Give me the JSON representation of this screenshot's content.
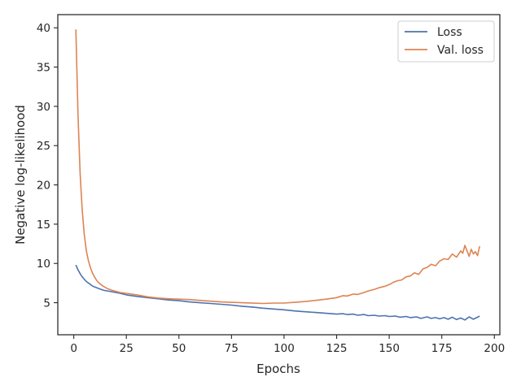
{
  "chart_data": {
    "type": "line",
    "title": "",
    "xlabel": "Epochs",
    "ylabel": "Negative log-likelihood",
    "xlim": [
      -7.6,
      202.6
    ],
    "ylim": [
      0.92,
      41.68
    ],
    "xticks": [
      0,
      25,
      50,
      75,
      100,
      125,
      150,
      175,
      200
    ],
    "yticks": [
      5,
      10,
      15,
      20,
      25,
      30,
      35,
      40
    ],
    "grid": false,
    "legend_position": "top-right",
    "series": [
      {
        "name": "Loss",
        "color": "#4c72b0",
        "x": [
          1,
          2,
          3,
          4,
          5,
          6,
          7,
          8,
          9,
          10,
          12,
          14,
          16,
          18,
          20,
          22,
          25,
          30,
          35,
          40,
          45,
          50,
          55,
          60,
          65,
          70,
          75,
          80,
          85,
          90,
          95,
          100,
          105,
          110,
          115,
          120,
          125,
          128,
          130,
          133,
          135,
          138,
          140,
          143,
          145,
          148,
          150,
          153,
          155,
          158,
          160,
          163,
          165,
          168,
          170,
          172,
          174,
          176,
          178,
          180,
          182,
          184,
          186,
          188,
          190,
          192,
          193
        ],
        "y": [
          9.8,
          9.2,
          8.7,
          8.3,
          8.0,
          7.7,
          7.5,
          7.3,
          7.1,
          7.0,
          6.8,
          6.6,
          6.5,
          6.4,
          6.3,
          6.2,
          6.0,
          5.8,
          5.65,
          5.5,
          5.35,
          5.25,
          5.1,
          5.0,
          4.9,
          4.8,
          4.7,
          4.55,
          4.45,
          4.3,
          4.2,
          4.1,
          3.95,
          3.85,
          3.75,
          3.65,
          3.55,
          3.6,
          3.5,
          3.55,
          3.4,
          3.5,
          3.35,
          3.4,
          3.3,
          3.35,
          3.25,
          3.3,
          3.15,
          3.25,
          3.1,
          3.2,
          3.0,
          3.2,
          3.0,
          3.1,
          2.95,
          3.1,
          2.9,
          3.15,
          2.85,
          3.05,
          2.8,
          3.2,
          2.9,
          3.15,
          3.3
        ]
      },
      {
        "name": "Val. loss",
        "color": "#dd8452",
        "x": [
          1,
          2,
          3,
          4,
          5,
          6,
          7,
          8,
          9,
          10,
          11,
          12,
          14,
          16,
          18,
          20,
          22,
          25,
          30,
          35,
          40,
          45,
          50,
          55,
          60,
          70,
          80,
          90,
          95,
          100,
          105,
          110,
          115,
          120,
          125,
          128,
          130,
          133,
          135,
          138,
          140,
          143,
          145,
          148,
          150,
          152,
          154,
          156,
          158,
          160,
          162,
          164,
          166,
          168,
          170,
          172,
          174,
          176,
          178,
          180,
          182,
          184,
          185,
          186,
          187,
          188,
          189,
          190,
          191,
          192,
          193
        ],
        "y": [
          39.8,
          29.0,
          21.5,
          16.8,
          13.7,
          11.6,
          10.3,
          9.4,
          8.7,
          8.2,
          7.8,
          7.5,
          7.1,
          6.8,
          6.6,
          6.45,
          6.3,
          6.2,
          6.0,
          5.75,
          5.6,
          5.5,
          5.45,
          5.4,
          5.3,
          5.1,
          5.0,
          4.9,
          4.95,
          4.95,
          5.05,
          5.15,
          5.3,
          5.45,
          5.65,
          5.9,
          5.85,
          6.1,
          6.05,
          6.3,
          6.5,
          6.7,
          6.9,
          7.1,
          7.3,
          7.6,
          7.8,
          7.9,
          8.3,
          8.4,
          8.8,
          8.6,
          9.3,
          9.5,
          9.9,
          9.7,
          10.3,
          10.6,
          10.5,
          11.2,
          10.8,
          11.6,
          11.3,
          12.3,
          11.6,
          10.9,
          11.8,
          11.2,
          11.5,
          11.0,
          12.2
        ]
      }
    ]
  }
}
